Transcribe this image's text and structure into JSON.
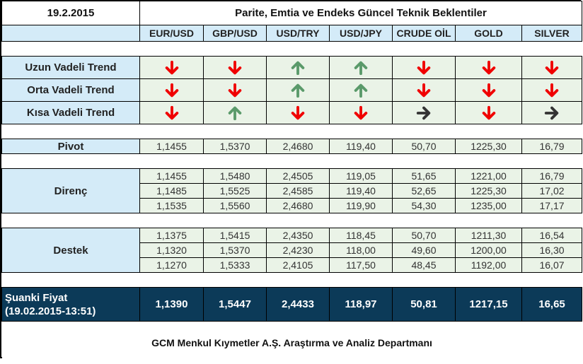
{
  "header": {
    "date": "19.2.2015",
    "title": "Parite, Emtia ve Endeks Güncel Teknik Beklentiler"
  },
  "columns": [
    "EUR/USD",
    "GBP/USD",
    "USD/TRY",
    "USD/JPY",
    "CRUDE OİL",
    "GOLD",
    "SILVER"
  ],
  "trends": [
    {
      "label": "Uzun Vadeli Trend",
      "directions": [
        "down",
        "down",
        "up",
        "up",
        "down",
        "down",
        "down"
      ]
    },
    {
      "label": "Orta Vadeli Trend",
      "directions": [
        "down",
        "down",
        "up",
        "up",
        "down",
        "down",
        "down"
      ]
    },
    {
      "label": "Kısa Vadeli Trend",
      "directions": [
        "down",
        "up",
        "down",
        "down",
        "right",
        "down",
        "right"
      ]
    }
  ],
  "pivot": {
    "label": "Pivot",
    "values": [
      "1,1455",
      "1,5370",
      "2,4680",
      "119,40",
      "50,70",
      "1225,30",
      "16,79"
    ]
  },
  "resistance": {
    "label": "Direnç",
    "rows": [
      [
        "1,1455",
        "1,5480",
        "2,4505",
        "119,05",
        "51,65",
        "1221,00",
        "16,79"
      ],
      [
        "1,1485",
        "1,5525",
        "2,4585",
        "119,40",
        "52,65",
        "1225,30",
        "17,02"
      ],
      [
        "1,1535",
        "1,5560",
        "2,4680",
        "119,90",
        "54,30",
        "1235,00",
        "17,17"
      ]
    ]
  },
  "support": {
    "label": "Destek",
    "rows": [
      [
        "1,1375",
        "1,5415",
        "2,4350",
        "118,45",
        "50,70",
        "1211,30",
        "16,54"
      ],
      [
        "1,1320",
        "1,5370",
        "2,4230",
        "118,00",
        "49,60",
        "1200,00",
        "16,30"
      ],
      [
        "1,1270",
        "1,5333",
        "2,4105",
        "117,50",
        "48,45",
        "1192,00",
        "16,07"
      ]
    ]
  },
  "current_price": {
    "label_line1": "Şuanki Fiyat",
    "label_line2": "(19.02.2015-13:51)",
    "values": [
      "1,1390",
      "1,5447",
      "2,4433",
      "118,97",
      "50,81",
      "1217,15",
      "16,65"
    ]
  },
  "footer": {
    "text": "GCM Menkul Kıymetler A.Ş. Araştırma ve Analiz Departmanı"
  },
  "colors": {
    "label_bg": "#d4ebf8",
    "cell_bg": "#eaf3e7",
    "current_bg": "#0c3a58",
    "arrow_down": "#f00000",
    "arrow_up": "#5a9a6a",
    "arrow_right": "#333333"
  },
  "icons": {
    "down": "arrow-down-icon",
    "up": "arrow-up-icon",
    "right": "arrow-right-icon"
  }
}
